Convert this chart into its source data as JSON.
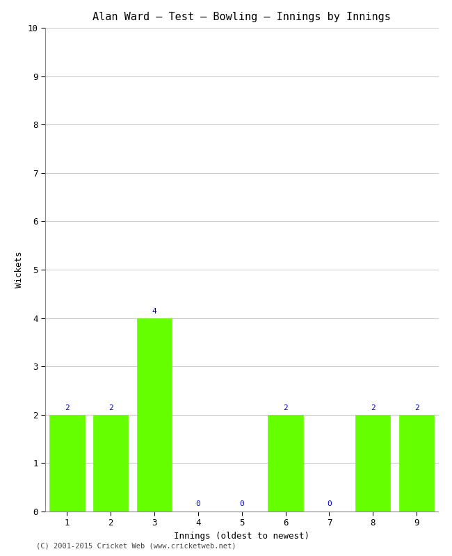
{
  "title": "Alan Ward – Test – Bowling – Innings by Innings",
  "xlabel": "Innings (oldest to newest)",
  "ylabel": "Wickets",
  "categories": [
    "1",
    "2",
    "3",
    "4",
    "5",
    "6",
    "7",
    "8",
    "9"
  ],
  "values": [
    2,
    2,
    4,
    0,
    0,
    2,
    0,
    2,
    2
  ],
  "bar_color": "#66ff00",
  "bar_edge_color": "#66ff00",
  "label_color": "#0000cc",
  "ylim": [
    0,
    10
  ],
  "yticks": [
    0,
    1,
    2,
    3,
    4,
    5,
    6,
    7,
    8,
    9,
    10
  ],
  "background_color": "#ffffff",
  "grid_color": "#cccccc",
  "title_fontsize": 11,
  "axis_label_fontsize": 9,
  "tick_fontsize": 9,
  "bar_label_fontsize": 8,
  "footer_text": "(C) 2001-2015 Cricket Web (www.cricketweb.net)",
  "footer_fontsize": 7.5
}
